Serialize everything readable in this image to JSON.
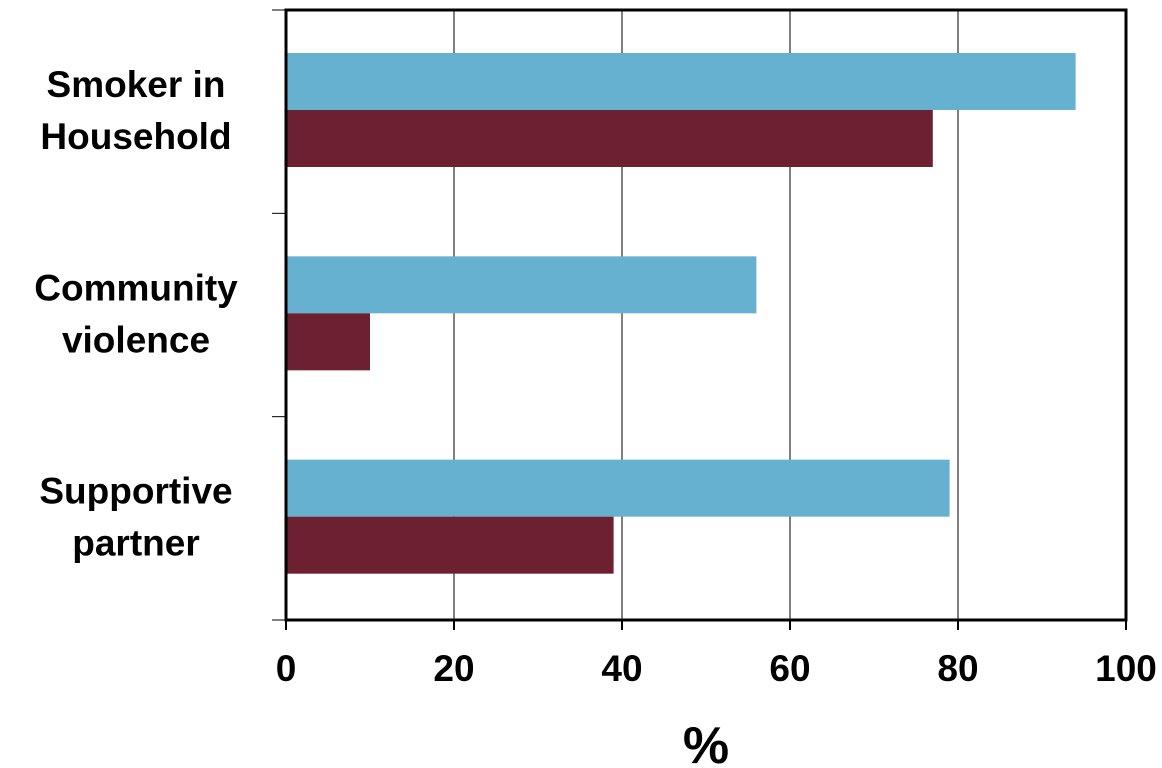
{
  "chart_data": {
    "type": "bar",
    "orientation": "horizontal",
    "title": "",
    "xlabel": "%",
    "ylabel": "",
    "categories": [
      [
        "Smoker in",
        "Household"
      ],
      [
        "Community",
        "violence"
      ],
      [
        "Supportive",
        "partner"
      ]
    ],
    "series": [
      {
        "color": "#65b1cf",
        "values": [
          94,
          56,
          79
        ]
      },
      {
        "color": "#6d2030",
        "values": [
          77,
          10,
          39
        ]
      }
    ],
    "xlim": [
      0,
      100
    ],
    "xticks": [
      0,
      20,
      40,
      60,
      80,
      100
    ],
    "grid": "vertical",
    "legend": "none"
  }
}
